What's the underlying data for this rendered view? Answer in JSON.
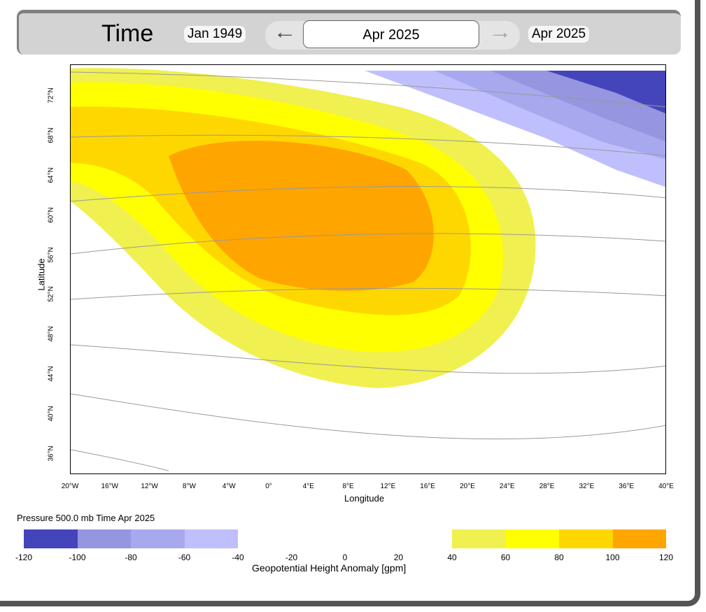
{
  "time_control": {
    "label": "Time",
    "start": "Jan 1949",
    "current": "Apr 2025",
    "end": "Apr 2025",
    "prev_icon": "arrow-left-icon",
    "next_icon": "arrow-right-icon"
  },
  "map": {
    "xlabel": "Longitude",
    "ylabel": "Latitude",
    "lon_ticks": [
      "20°W",
      "16°W",
      "12°W",
      "8°W",
      "4°W",
      "0°",
      "4°E",
      "8°E",
      "12°E",
      "16°E",
      "20°E",
      "24°E",
      "28°E",
      "32°E",
      "36°E",
      "40°E"
    ],
    "lat_ticks": [
      "72°N",
      "68°N",
      "64°N",
      "60°N",
      "56°N",
      "52°N",
      "48°N",
      "44°N",
      "40°N",
      "36°N"
    ]
  },
  "legend": {
    "caption": "Pressure 500.0 mb Time Apr 2025",
    "title": "Geopotential Height Anomaly [gpm]",
    "tick_labels": [
      "-120",
      "-100",
      "-80",
      "-60",
      "-40",
      "-20",
      "0",
      "20",
      "40",
      "60",
      "80",
      "100",
      "120"
    ],
    "bins": [
      {
        "from": -120,
        "to": -100,
        "color": "#4444bb"
      },
      {
        "from": -100,
        "to": -80,
        "color": "#9595e0"
      },
      {
        "from": -80,
        "to": -60,
        "color": "#a8a8ef"
      },
      {
        "from": -60,
        "to": -40,
        "color": "#bfbffd"
      },
      {
        "from": 40,
        "to": 60,
        "color": "#f0f050"
      },
      {
        "from": 60,
        "to": 80,
        "color": "#ffff00"
      },
      {
        "from": 80,
        "to": 100,
        "color": "#ffd700"
      },
      {
        "from": 100,
        "to": 120,
        "color": "#ffa500"
      }
    ]
  }
}
